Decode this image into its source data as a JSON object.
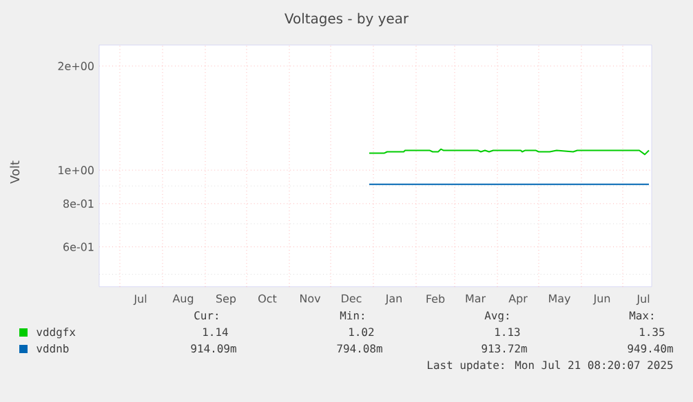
{
  "chart_data": {
    "type": "line",
    "title": "Voltages - by year",
    "ylabel": "Volt",
    "xlim": [
      "2024-06-16",
      "2025-07-22"
    ],
    "xticks": [
      {
        "value": "2024-07-01",
        "label": null
      },
      {
        "value": "2024-07-16",
        "label": "Jul"
      },
      {
        "value": "2024-08-01",
        "label": null
      },
      {
        "value": "2024-08-16",
        "label": "Aug"
      },
      {
        "value": "2024-09-01",
        "label": null
      },
      {
        "value": "2024-09-16",
        "label": "Sep"
      },
      {
        "value": "2024-10-01",
        "label": null
      },
      {
        "value": "2024-10-16",
        "label": "Oct"
      },
      {
        "value": "2024-11-01",
        "label": null
      },
      {
        "value": "2024-11-16",
        "label": "Nov"
      },
      {
        "value": "2024-12-01",
        "label": null
      },
      {
        "value": "2024-12-16",
        "label": "Dec"
      },
      {
        "value": "2025-01-01",
        "label": null
      },
      {
        "value": "2025-01-16",
        "label": "Jan"
      },
      {
        "value": "2025-02-01",
        "label": null
      },
      {
        "value": "2025-02-15",
        "label": "Feb"
      },
      {
        "value": "2025-03-01",
        "label": null
      },
      {
        "value": "2025-03-16",
        "label": "Mar"
      },
      {
        "value": "2025-04-01",
        "label": null
      },
      {
        "value": "2025-04-16",
        "label": "Apr"
      },
      {
        "value": "2025-05-01",
        "label": null
      },
      {
        "value": "2025-05-16",
        "label": "May"
      },
      {
        "value": "2025-06-01",
        "label": null
      },
      {
        "value": "2025-06-16",
        "label": "Jun"
      },
      {
        "value": "2025-07-01",
        "label": null
      },
      {
        "value": "2025-07-16",
        "label": "Jul"
      }
    ],
    "ylim": [
      0.46,
      2.3
    ],
    "log": "y",
    "yticks": [
      {
        "value": 0.5,
        "label": null
      },
      {
        "value": 0.6,
        "label": "6e-01"
      },
      {
        "value": 0.7,
        "label": null
      },
      {
        "value": 0.8,
        "label": "8e-01"
      },
      {
        "value": 0.9,
        "label": null
      },
      {
        "value": 1,
        "label": "1e+00"
      },
      {
        "value": 2,
        "label": "2e+00"
      }
    ],
    "grid": true,
    "legend": "bottom",
    "series": [
      {
        "name": "vddgfx",
        "color": "#00cc00",
        "x": [
          "2024-12-29",
          "2025-01-09",
          "2025-01-11",
          "2025-01-23",
          "2025-01-24",
          "2025-02-11",
          "2025-02-13",
          "2025-02-17",
          "2025-02-19",
          "2025-02-21",
          "2025-03-18",
          "2025-03-20",
          "2025-03-23",
          "2025-03-26",
          "2025-03-29",
          "2025-04-18",
          "2025-04-19",
          "2025-04-21",
          "2025-04-29",
          "2025-05-01",
          "2025-05-09",
          "2025-05-14",
          "2025-05-26",
          "2025-05-29",
          "2025-07-13",
          "2025-07-17",
          "2025-07-20"
        ],
        "values": [
          1.12,
          1.12,
          1.13,
          1.13,
          1.14,
          1.14,
          1.13,
          1.13,
          1.15,
          1.14,
          1.14,
          1.13,
          1.14,
          1.13,
          1.14,
          1.14,
          1.13,
          1.14,
          1.14,
          1.13,
          1.13,
          1.14,
          1.13,
          1.14,
          1.14,
          1.11,
          1.14
        ]
      },
      {
        "name": "vddnb",
        "color": "#0066b3",
        "x": [
          "2024-12-29",
          "2025-07-20"
        ],
        "values": [
          0.91,
          0.91
        ]
      }
    ],
    "annotations": [
      "Cur:",
      "Min:",
      "Avg:",
      "Max:",
      "1.14",
      "1.02",
      "1.13",
      "1.35",
      "914.09m",
      "794.08m",
      "913.72m",
      "949.40m",
      "Last update: Mon Jul 21 08:20:07 2025"
    ]
  }
}
